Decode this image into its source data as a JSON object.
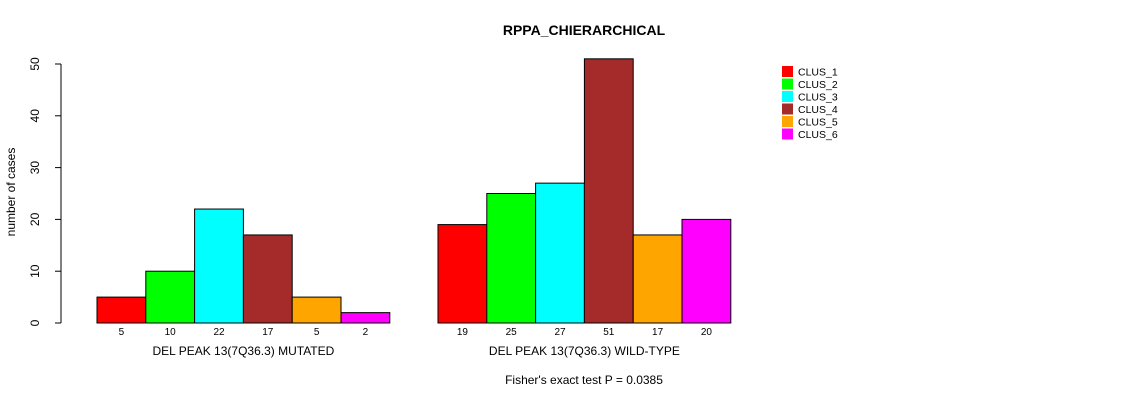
{
  "chart_data": {
    "type": "bar",
    "title": "RPPA_CHIERARCHICAL",
    "xlabel": "",
    "ylabel": "number of cases",
    "ylim": [
      0,
      50
    ],
    "yticks": [
      "0",
      "10",
      "20",
      "30",
      "40",
      "50"
    ],
    "series_names": [
      "CLUS_1",
      "CLUS_2",
      "CLUS_3",
      "CLUS_4",
      "CLUS_5",
      "CLUS_6"
    ],
    "colors": [
      "#ff0000",
      "#00ff00",
      "#00ffff",
      "#a52a2a",
      "#ffa500",
      "#ff00ff"
    ],
    "groups": [
      {
        "label": "DEL PEAK 13(7Q36.3) MUTATED",
        "values": [
          5,
          10,
          22,
          17,
          5,
          2
        ],
        "value_labels": [
          "5",
          "10",
          "22",
          "17",
          "5",
          "2"
        ]
      },
      {
        "label": "DEL PEAK 13(7Q36.3) WILD-TYPE",
        "values": [
          19,
          25,
          27,
          51,
          17,
          20
        ],
        "value_labels": [
          "19",
          "25",
          "27",
          "51",
          "17",
          "20"
        ]
      }
    ],
    "legend_position": "top-right",
    "footer": "Fisher's exact test P = 0.0385"
  }
}
